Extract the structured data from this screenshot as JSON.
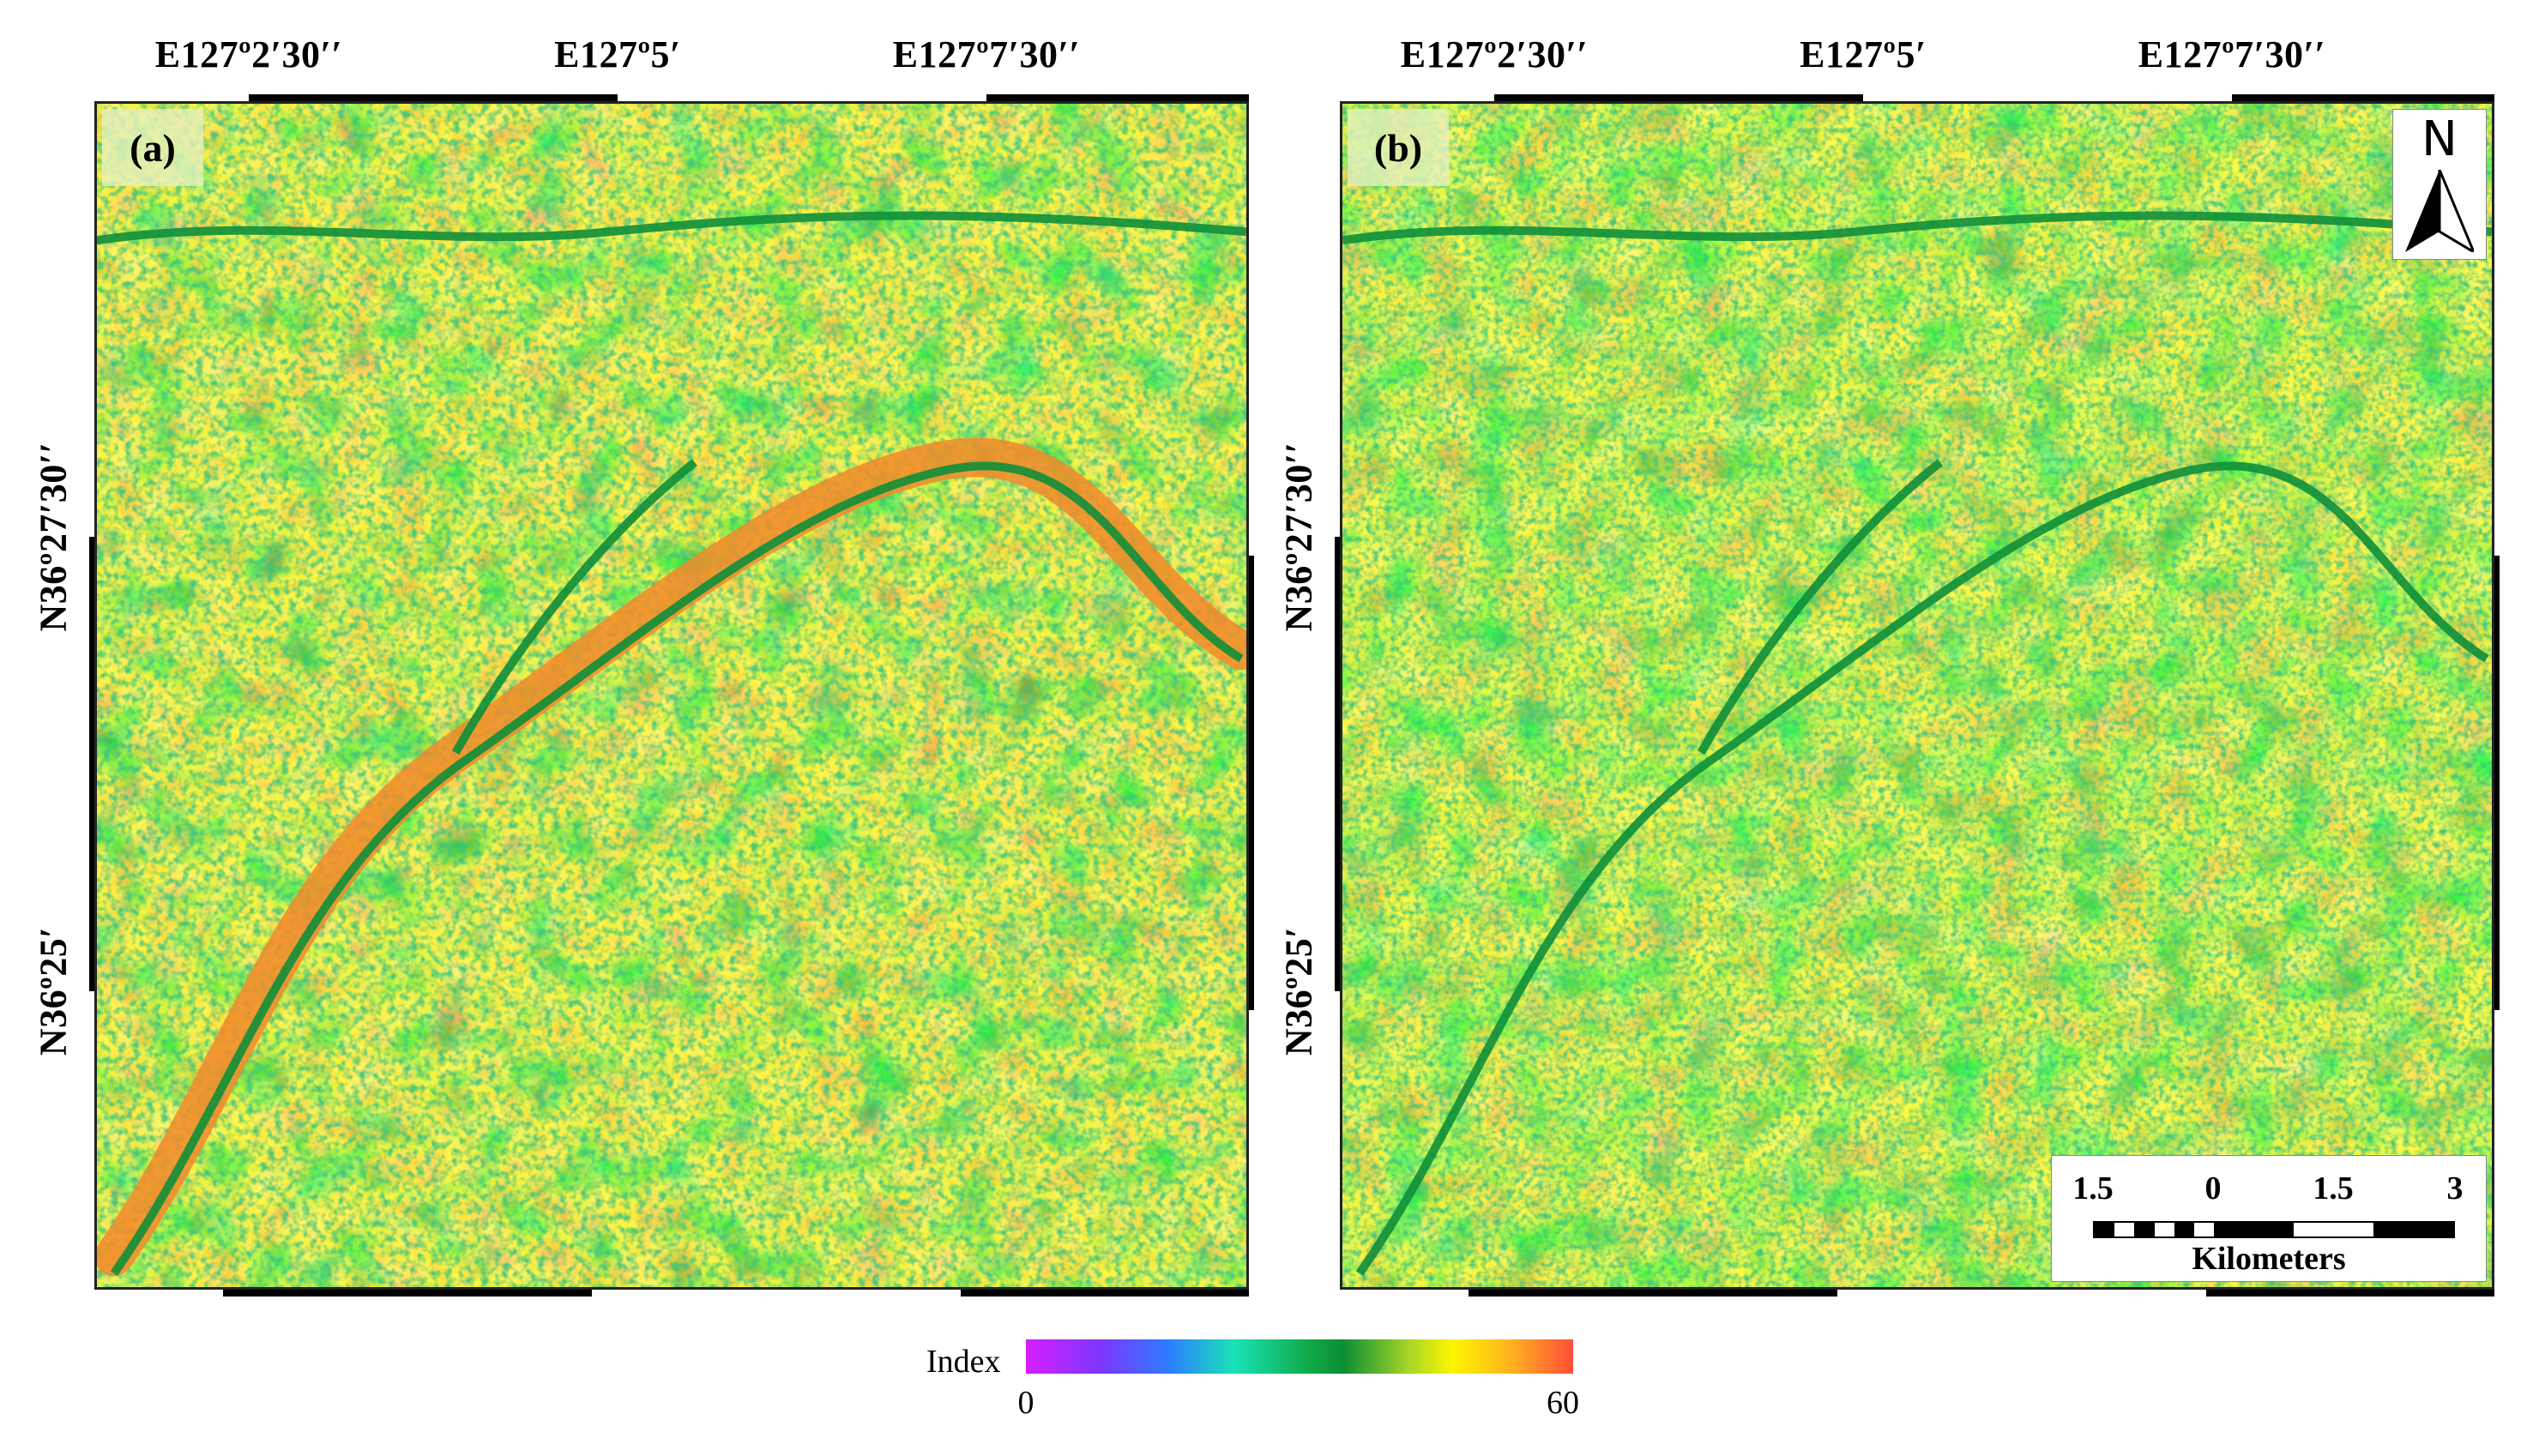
{
  "colors": {
    "ramp": [
      "#d61eff",
      "#2d7cff",
      "#19e3b7",
      "#10a846",
      "#a7d628",
      "#fff500",
      "#ffb020",
      "#ff3c3c"
    ],
    "frame": "#000000"
  },
  "panels": [
    {
      "label": "(a)",
      "top_ticks": [
        "E127º2′30′′",
        "E127º5′",
        "E127º7′30′′"
      ],
      "left_ticks": [
        "N36º27′30′′",
        "N36º25′"
      ]
    },
    {
      "label": "(b)",
      "top_ticks": [
        "E127º2′30′′",
        "E127º5′",
        "E127º7′30′′"
      ],
      "left_ticks": [
        "N36º27′30′′",
        "N36º25′"
      ],
      "north_arrow": {
        "label": "N",
        "icon": "north-arrow-icon"
      },
      "scale_bar": {
        "ticks": [
          "1.5",
          "0",
          "1.5",
          "3"
        ],
        "units": "Kilometers"
      }
    }
  ],
  "legend": {
    "title": "Index",
    "min": "0",
    "max": "60"
  }
}
